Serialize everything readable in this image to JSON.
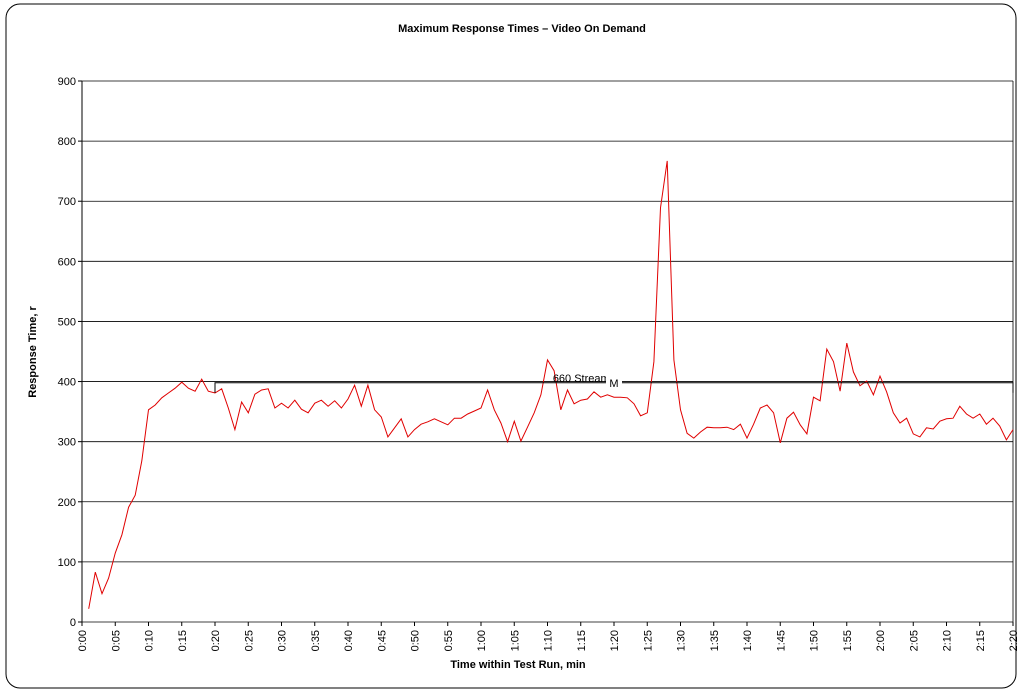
{
  "chart_data": {
    "type": "line",
    "title": "Maximum Response Times – Video On Demand",
    "x_label": "Time within Test Run, min",
    "y_label": "Response Time, r",
    "categories": [
      "0:00",
      null,
      null,
      null,
      null,
      "0:05",
      null,
      null,
      null,
      null,
      "0:10",
      null,
      null,
      null,
      null,
      "0:15",
      null,
      null,
      null,
      null,
      "0:20",
      null,
      null,
      null,
      null,
      "0:25",
      null,
      null,
      null,
      null,
      "0:30",
      null,
      null,
      null,
      null,
      "0:35",
      null,
      null,
      null,
      null,
      "0:40",
      null,
      null,
      null,
      null,
      "0:45",
      null,
      null,
      null,
      null,
      "0:50",
      null,
      null,
      null,
      null,
      "0:55",
      null,
      null,
      null,
      null,
      "1:00",
      null,
      null,
      null,
      null,
      "1:05",
      null,
      null,
      null,
      null,
      "1:10",
      null,
      null,
      null,
      null,
      "1:15",
      null,
      null,
      null,
      null,
      "1:20",
      null,
      null,
      null,
      null,
      "1:25",
      null,
      null,
      null,
      null,
      "1:30",
      null,
      null,
      null,
      null,
      "1:35",
      null,
      null,
      null,
      null,
      "1:40",
      null,
      null,
      null,
      null,
      "1:45",
      null,
      null,
      null,
      null,
      "1:50",
      null,
      null,
      null,
      null,
      "1:55",
      null,
      null,
      null,
      null,
      "2:00",
      null,
      null,
      null,
      null,
      "2:05",
      null,
      null,
      null,
      null,
      "2:10",
      null,
      null,
      null,
      null,
      "2:15",
      null,
      null,
      null,
      null,
      "2:20"
    ],
    "series": [
      {
        "name": "Maximum Response Time",
        "color": "#e00000",
        "values": [
          null,
          22,
          83,
          47,
          73,
          115,
          145,
          191,
          211,
          268,
          353,
          361,
          373,
          381,
          389,
          399,
          389,
          384,
          404,
          384,
          381,
          388,
          356,
          320,
          366,
          348,
          379,
          386,
          388,
          356,
          364,
          356,
          369,
          354,
          348,
          364,
          369,
          359,
          368,
          356,
          371,
          394,
          359,
          394,
          353,
          341,
          308,
          323,
          338,
          308,
          320,
          329,
          333,
          338,
          333,
          328,
          339,
          339,
          346,
          351,
          356,
          386,
          353,
          331,
          300,
          334,
          301,
          324,
          348,
          378,
          436,
          418,
          353,
          386,
          363,
          369,
          371,
          383,
          374,
          378,
          374,
          374,
          373,
          363,
          343,
          348,
          433,
          689,
          767,
          436,
          353,
          314,
          306,
          316,
          324,
          323,
          323,
          324,
          320,
          329,
          306,
          329,
          356,
          361,
          348,
          298,
          339,
          349,
          328,
          313,
          374,
          368,
          454,
          433,
          384,
          464,
          416,
          393,
          401,
          378,
          409,
          383,
          348,
          331,
          339,
          313,
          308,
          323,
          321,
          334,
          338,
          339,
          359,
          346,
          339,
          346,
          329,
          339,
          326,
          303,
          320
        ]
      }
    ],
    "ylim": [
      0,
      900
    ],
    "yticks": [
      0,
      100,
      200,
      300,
      400,
      500,
      600,
      700,
      800,
      900
    ],
    "grid": true,
    "annotations": [
      {
        "text": "660 Streams",
        "from": "0:20",
        "to": "2:20",
        "y": 398
      },
      {
        "text": "M"
      }
    ]
  }
}
